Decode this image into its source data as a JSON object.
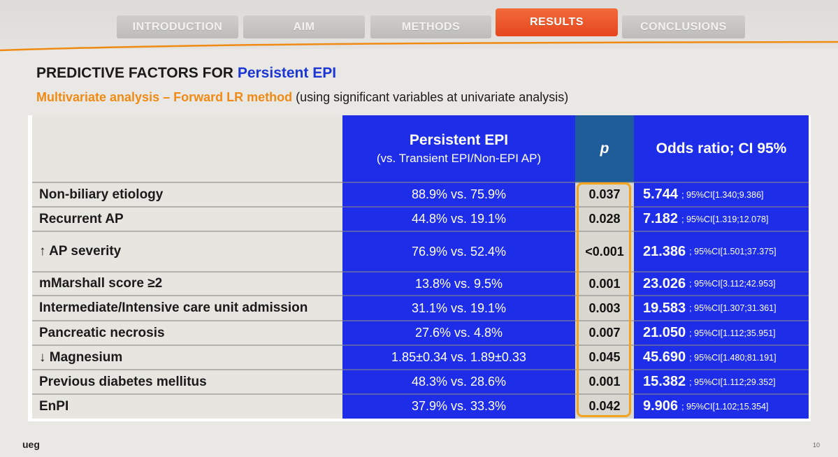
{
  "nav": {
    "tabs": [
      {
        "label": "INTRODUCTION",
        "active": false
      },
      {
        "label": "AIM",
        "active": false
      },
      {
        "label": "METHODS",
        "active": false
      },
      {
        "label": "RESULTS",
        "active": true
      },
      {
        "label": "CONCLUSIONS",
        "active": false
      }
    ]
  },
  "colors": {
    "accent_orange": "#e6471e",
    "title_blue": "#1b35d6",
    "subtitle_orange": "#f08a13",
    "table_blue": "#1e2ee8",
    "p_header": "#1f5d9a",
    "highlight": "#f3a21c"
  },
  "title": {
    "prefix": "PREDICTIVE FACTORS FOR",
    "highlight": "Persistent EPI"
  },
  "subtitle": {
    "highlight": "Multivariate analysis – Forward LR method",
    "rest": "(using significant variables at univariate analysis)"
  },
  "table": {
    "header": {
      "group_title": "Persistent EPI",
      "group_sub": "(vs. Transient EPI/Non-EPI AP)",
      "p": "p",
      "or": "Odds ratio; CI 95%"
    },
    "rows": [
      {
        "label": "Non-biliary etiology",
        "value": "88.9% vs. 75.9%",
        "p": "0.037",
        "or": "5.744",
        "ci": "; 95%CI[1.340;9.386]"
      },
      {
        "label": "Recurrent AP",
        "value": "44.8% vs. 19.1%",
        "p": "0.028",
        "or": "7.182",
        "ci": "; 95%CI[1.319;12.078]"
      },
      {
        "label": "↑ AP severity",
        "value": "76.9% vs. 52.4%",
        "p": "<0.001",
        "or": "21.386",
        "ci": "; 95%CI[1.501;37.375]"
      },
      {
        "label": "mMarshall score ≥2",
        "value": "13.8% vs. 9.5%",
        "p": "0.001",
        "or": "23.026",
        "ci": "; 95%CI[3.112;42.953]"
      },
      {
        "label": "Intermediate/Intensive care unit admission",
        "value": "31.1% vs. 19.1%",
        "p": "0.003",
        "or": "19.583",
        "ci": "; 95%CI[1.307;31.361]"
      },
      {
        "label": "Pancreatic necrosis",
        "value": "27.6% vs. 4.8%",
        "p": "0.007",
        "or": "21.050",
        "ci": "; 95%CI[1.112;35.951]"
      },
      {
        "label": "↓ Magnesium",
        "value": "1.85±0.34 vs. 1.89±0.33",
        "p": "0.045",
        "or": "45.690",
        "ci": "; 95%CI[1.480;81.191]"
      },
      {
        "label": "Previous diabetes mellitus",
        "value": "48.3% vs. 28.6%",
        "p": "0.001",
        "or": "15.382",
        "ci": "; 95%CI[1.112;29.352]"
      },
      {
        "label": "EnPI",
        "value": "37.9% vs. 33.3%",
        "p": "0.042",
        "or": "9.906",
        "ci": "; 95%CI[1.102;15.354]"
      }
    ]
  },
  "footer": {
    "logo": "ueg",
    "page": "10"
  }
}
